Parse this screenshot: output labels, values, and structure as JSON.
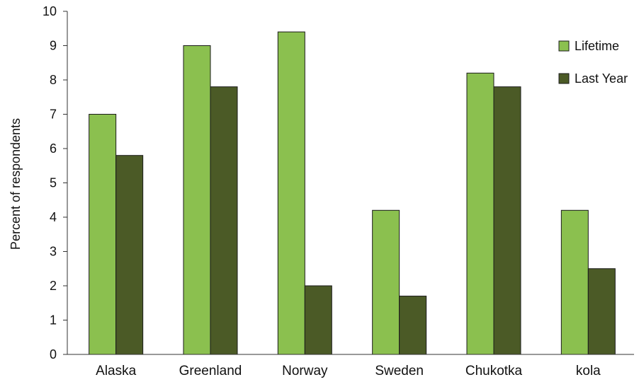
{
  "chart_data": {
    "type": "bar",
    "title": "",
    "xlabel": "",
    "ylabel": "Percent of respondents",
    "ylim": [
      0,
      10
    ],
    "yticks": [
      0,
      1,
      2,
      3,
      4,
      5,
      6,
      7,
      8,
      9,
      10
    ],
    "grid": false,
    "legend_position": "top-right",
    "categories": [
      "Alaska",
      "Greenland",
      "Norway",
      "Sweden",
      "Chukotka",
      "kola"
    ],
    "series": [
      {
        "name": "Lifetime",
        "color": "#8bc04f",
        "values": [
          7.0,
          9.0,
          9.4,
          4.2,
          8.2,
          4.2
        ]
      },
      {
        "name": "Last Year",
        "color": "#4b5a26",
        "values": [
          5.8,
          7.8,
          2.0,
          1.7,
          7.8,
          2.5
        ]
      }
    ]
  }
}
